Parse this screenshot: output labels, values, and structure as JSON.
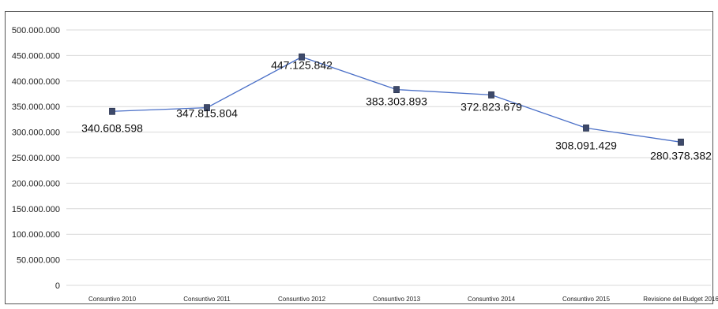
{
  "chart_data": {
    "type": "line",
    "title": "",
    "xlabel": "",
    "ylabel": "",
    "categories": [
      "Consuntivo 2010",
      "Consuntivo 2011",
      "Consuntivo 2012",
      "Consuntivo 2013",
      "Consuntivo 2014",
      "Consuntivo 2015",
      "Revisione del Budget 2016"
    ],
    "series": [
      {
        "values": [
          340608598,
          347815804,
          447125842,
          383303893,
          372823679,
          308091429,
          280378382
        ],
        "labels": [
          "340.608.598",
          "347.815.804",
          "447.125.842",
          "383.303.893",
          "372.823.679",
          "308.091.429",
          "280.378.382"
        ]
      }
    ],
    "ylim": [
      0,
      500000000
    ],
    "yticks": [
      0,
      50000000,
      100000000,
      150000000,
      200000000,
      250000000,
      300000000,
      350000000,
      400000000,
      450000000,
      500000000
    ],
    "ytick_labels": [
      "0",
      "50.000.000",
      "100.000.000",
      "150.000.000",
      "200.000.000",
      "250.000.000",
      "300.000.000",
      "350.000.000",
      "400.000.000",
      "450.000.000",
      "500.000.000"
    ],
    "grid": true,
    "legend": "none",
    "colors": {
      "line": "#4a6fc7",
      "marker": "#3e4a6b",
      "grid": "#d9d9d9"
    }
  }
}
